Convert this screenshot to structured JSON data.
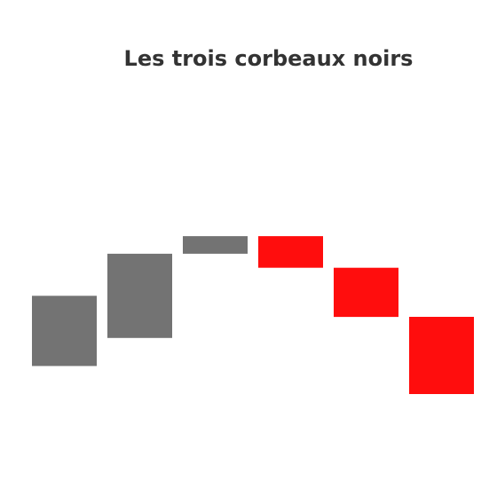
{
  "chart_data": {
    "type": "candlestick",
    "title": "Les trois corbeaux noirs",
    "xlabel": "",
    "ylabel": "",
    "grid": false,
    "legend": "none",
    "ylim": [
      0,
      11
    ],
    "colors": {
      "up": "#737373",
      "down": "#FF0D0D"
    },
    "candles": [
      {
        "open": 3.1,
        "close": 5.1,
        "direction": "up"
      },
      {
        "open": 3.9,
        "close": 6.3,
        "direction": "up"
      },
      {
        "open": 6.3,
        "close": 6.8,
        "direction": "up"
      },
      {
        "open": 6.8,
        "close": 5.9,
        "direction": "down"
      },
      {
        "open": 5.9,
        "close": 4.5,
        "direction": "down"
      },
      {
        "open": 4.5,
        "close": 2.3,
        "direction": "down"
      }
    ]
  }
}
